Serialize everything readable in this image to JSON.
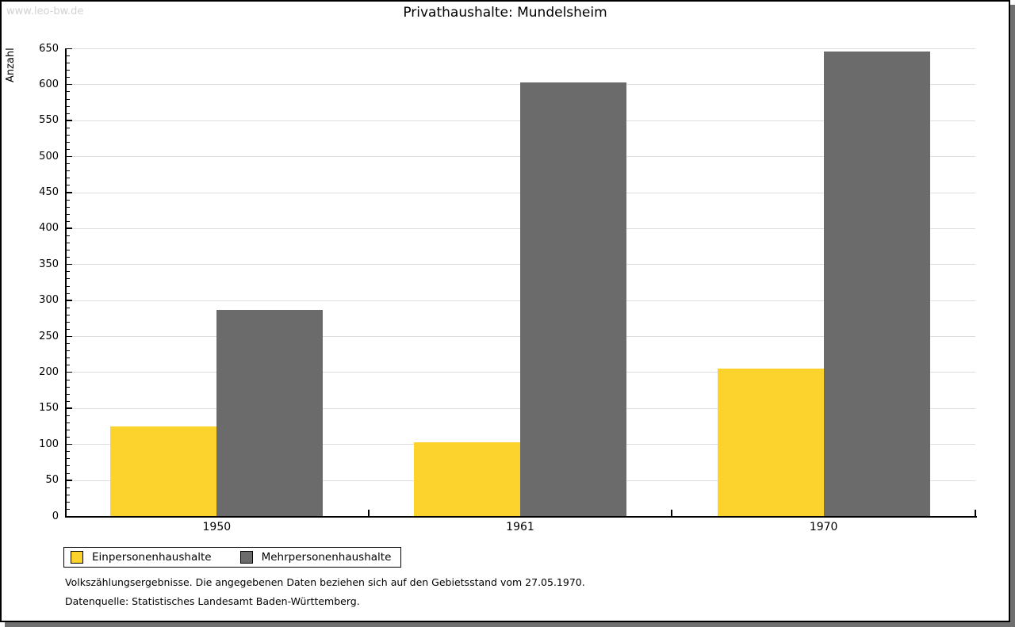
{
  "watermark": "www.leo-bw.de",
  "chart_data": {
    "type": "bar",
    "title": "Privathaushalte: Mundelsheim",
    "categories": [
      "1950",
      "1961",
      "1970"
    ],
    "series": [
      {
        "name": "Einpersonenhaushalte",
        "color": "#FCD32C",
        "values": [
          125,
          103,
          205
        ]
      },
      {
        "name": "Mehrpersonenhaushalte",
        "color": "#6B6B6B",
        "values": [
          286,
          603,
          646
        ]
      }
    ],
    "xlabel": "",
    "ylabel": "Anzahl",
    "ylim": [
      0,
      650
    ],
    "yticks": [
      0,
      50,
      100,
      150,
      200,
      250,
      300,
      350,
      400,
      450,
      500,
      550,
      600,
      650
    ],
    "ytick_step": 50,
    "minor_tick_step": 10,
    "grid": true,
    "legend_position": "bottom-left"
  },
  "footnotes": [
    "Volkszählungsergebnisse. Die angegebenen Daten beziehen sich auf den Gebietsstand vom 27.05.1970.",
    "Datenquelle: Statistisches Landesamt Baden-Württemberg."
  ],
  "colors": {
    "grid": "#DDDDDD",
    "axis": "#000000",
    "watermark": "#D2D2D2",
    "frame_border": "#000000",
    "frame_shadow": "#707070",
    "background": "#FFFFFF"
  }
}
